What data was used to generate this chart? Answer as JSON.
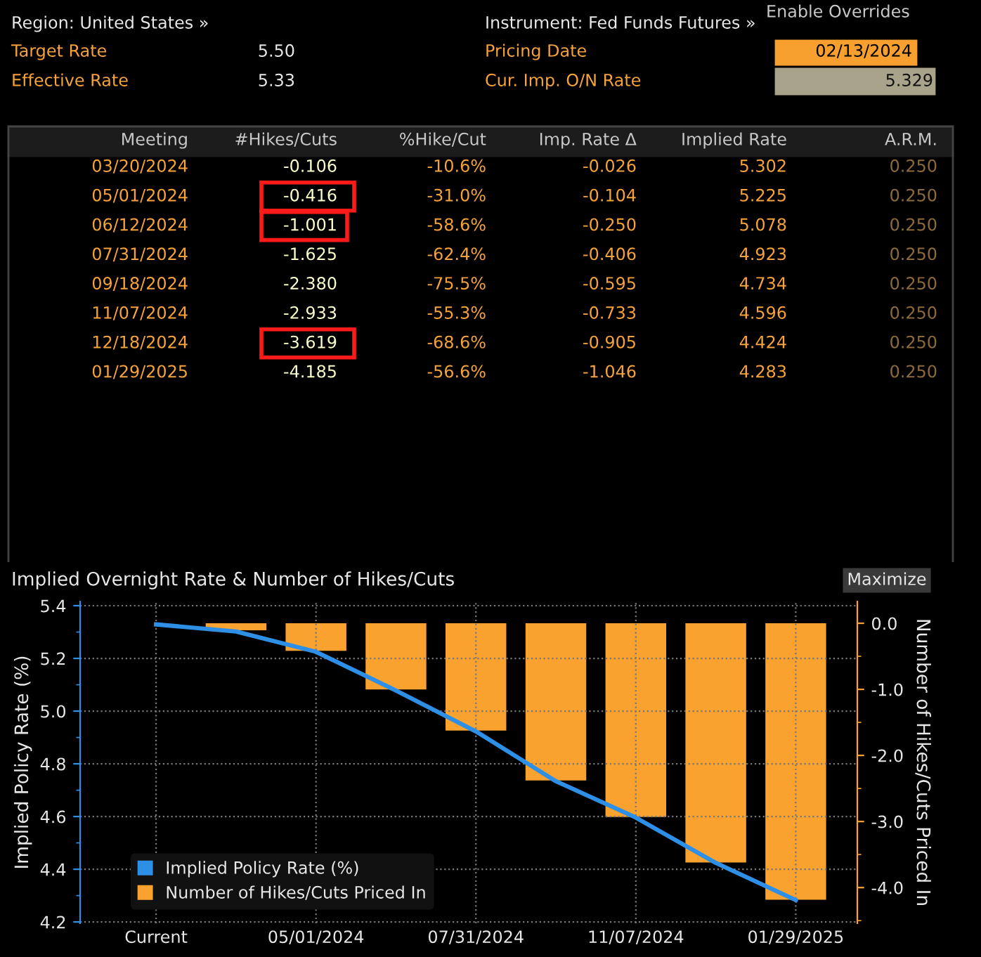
{
  "chart_data": [
    {
      "type": "other",
      "annotations": [
        "Enable Overrides",
        "Region: United States »",
        "Target Rate",
        "5.50",
        "Effective Rate",
        "5.33",
        "Instrument: Fed Funds Futures »",
        "Pricing Date",
        "02/13/2024",
        "Cur. Imp. O/N Rate",
        "5.329",
        "Meeting",
        "#Hikes/Cuts",
        "%Hike/Cut",
        "Imp. Rate Δ",
        "Implied Rate",
        "A.R.M.",
        "03/20/2024",
        "-0.106",
        "-10.6%",
        "-0.026",
        "5.302",
        "0.250",
        "05/01/2024",
        "-0.416",
        "-31.0%",
        "-0.104",
        "5.225",
        "0.250",
        "06/12/2024",
        "-1.001",
        "-58.6%",
        "-0.250",
        "5.078",
        "0.250",
        "07/31/2024",
        "-1.625",
        "-62.4%",
        "-0.406",
        "4.923",
        "0.250",
        "09/18/2024",
        "-2.380",
        "-75.5%",
        "-0.595",
        "4.734",
        "0.250",
        "11/07/2024",
        "-2.933",
        "-55.3%",
        "-0.733",
        "4.596",
        "0.250",
        "12/18/2024",
        "-3.619",
        "-68.6%",
        "-0.905",
        "4.424",
        "0.250",
        "01/29/2025",
        "-4.185",
        "-56.6%",
        "-1.046",
        "4.283",
        "0.250",
        "Maximize"
      ]
    },
    {
      "type": "bar",
      "title": "Implied Overnight Rate & Number of Hikes/Cuts",
      "ylabel": "Implied Policy Rate (%)",
      "y2label": "Number of Hikes/Cuts Priced In",
      "categories": [
        "Current",
        null,
        "05/01/2024",
        null,
        "07/31/2024",
        null,
        "11/07/2024",
        null,
        "01/29/2025"
      ],
      "series": [
        {
          "name": "Implied Policy Rate (%)",
          "type": "line",
          "color": "#2e8fe6",
          "values": [
            5.329,
            5.302,
            5.225,
            5.078,
            4.923,
            4.734,
            4.596,
            4.424,
            4.283
          ]
        },
        {
          "name": "Number of Hikes/Cuts Priced In",
          "type": "bar",
          "axis": "y2",
          "color": "#f9a22f",
          "values": [
            0,
            -0.106,
            -0.416,
            -1.001,
            -1.625,
            -2.38,
            -2.933,
            -3.619,
            -4.185
          ]
        }
      ],
      "ylim": [
        4.195,
        5.416
      ],
      "yticks": [
        4.2,
        4.4,
        4.6,
        4.8,
        {
          "value": 5,
          "label": "5.0"
        },
        5.2,
        5.4
      ],
      "y2lim": [
        -4.54,
        0.33
      ],
      "y2ticks": [
        {
          "value": -4,
          "label": "-4.0"
        },
        {
          "value": -3,
          "label": "-3.0"
        },
        {
          "value": -2,
          "label": "-2.0"
        },
        {
          "value": -1,
          "label": "-1.0"
        },
        {
          "value": 0,
          "label": "0.0"
        }
      ],
      "grid": true,
      "legend": "bottom left",
      "marker": "none",
      "line_style": "solid"
    }
  ]
}
